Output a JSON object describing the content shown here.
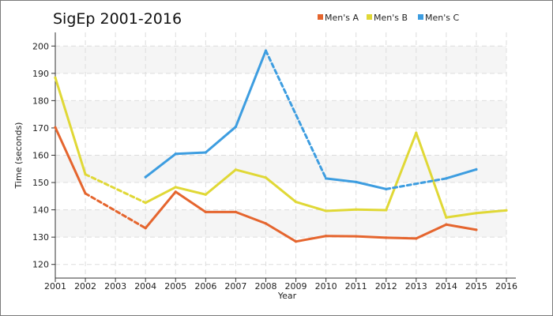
{
  "chart_data": {
    "type": "line",
    "title": "SigEp 2001-2016",
    "xlabel": "Year",
    "ylabel": "Time (seconds)",
    "xlim": [
      2001,
      2016
    ],
    "ylim": [
      115,
      205
    ],
    "x_ticks": [
      2001,
      2002,
      2003,
      2004,
      2005,
      2006,
      2007,
      2008,
      2009,
      2010,
      2011,
      2012,
      2013,
      2014,
      2015,
      2016
    ],
    "y_ticks": [
      120,
      130,
      140,
      150,
      160,
      170,
      180,
      190,
      200
    ],
    "grid": true,
    "legend_position": "top-right",
    "series": [
      {
        "name": "Men's A",
        "color": "#e5652e",
        "points": [
          [
            2001,
            170.2
          ],
          [
            2002,
            146.0
          ],
          [
            2004,
            133.3
          ],
          [
            2005,
            146.6
          ],
          [
            2006,
            139.2
          ],
          [
            2007,
            139.2
          ],
          [
            2008,
            135.0
          ],
          [
            2009,
            128.4
          ],
          [
            2010,
            130.4
          ],
          [
            2011,
            130.3
          ],
          [
            2012,
            129.8
          ],
          [
            2013,
            129.5
          ],
          [
            2014,
            134.6
          ],
          [
            2015,
            132.7
          ]
        ],
        "dashed_segments": [
          [
            2002,
            2004
          ]
        ]
      },
      {
        "name": "Men's B",
        "color": "#e0d836",
        "points": [
          [
            2001,
            188.4
          ],
          [
            2002,
            153.0
          ],
          [
            2004,
            142.6
          ],
          [
            2005,
            148.3
          ],
          [
            2006,
            145.6
          ],
          [
            2007,
            154.7
          ],
          [
            2008,
            151.8
          ],
          [
            2009,
            142.9
          ],
          [
            2010,
            139.6
          ],
          [
            2011,
            140.1
          ],
          [
            2012,
            139.9
          ],
          [
            2013,
            168.2
          ],
          [
            2014,
            137.2
          ],
          [
            2015,
            138.8
          ],
          [
            2016,
            139.8
          ]
        ],
        "dashed_segments": [
          [
            2002,
            2004
          ]
        ]
      },
      {
        "name": "Men's C",
        "color": "#3d9de0",
        "points": [
          [
            2004,
            152.0
          ],
          [
            2005,
            160.5
          ],
          [
            2006,
            161.0
          ],
          [
            2007,
            170.4
          ],
          [
            2008,
            198.3
          ],
          [
            2010,
            151.5
          ],
          [
            2011,
            150.2
          ],
          [
            2012,
            147.6
          ],
          [
            2014,
            151.5
          ],
          [
            2015,
            154.8
          ]
        ],
        "dashed_segments": [
          [
            2008,
            2010
          ],
          [
            2012,
            2014
          ]
        ]
      }
    ]
  }
}
